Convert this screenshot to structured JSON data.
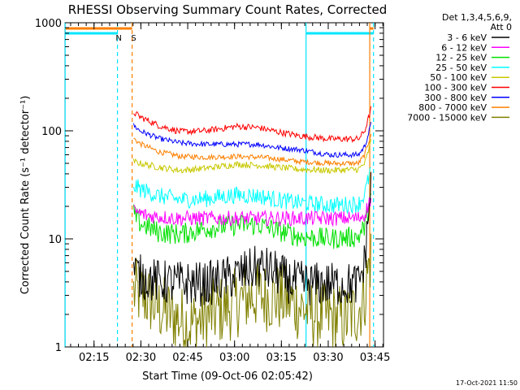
{
  "chart_data": {
    "type": "line",
    "title": "RHESSI Observing Summary Count Rates, Corrected",
    "xlabel": "Start Time (09-Oct-06 02:05:42)",
    "ylabel": "Corrected Count Rate (s⁻¹ detector⁻¹)",
    "y_scale": "log",
    "ylim": [
      1,
      1000
    ],
    "xlim_minutes_after_start": [
      0,
      102
    ],
    "x_ticks": [
      {
        "label": "02:15",
        "t": 9.3
      },
      {
        "label": "02:30",
        "t": 24.3
      },
      {
        "label": "02:45",
        "t": 39.3
      },
      {
        "label": "03:00",
        "t": 54.3
      },
      {
        "label": "03:15",
        "t": 69.3
      },
      {
        "label": "03:30",
        "t": 84.3
      },
      {
        "label": "03:45",
        "t": 99.3
      }
    ],
    "y_ticks": [
      {
        "label": "1",
        "v": 1
      },
      {
        "label": "10",
        "v": 10
      },
      {
        "label": "100",
        "v": 100
      },
      {
        "label": "1000",
        "v": 1000
      }
    ],
    "legend_header": [
      "Det 1,3,4,5,6,9,",
      "Att 0"
    ],
    "legend_position": "outside-right-top",
    "annotations": [
      {
        "label": "N",
        "t": 17.2,
        "color": "#00e5ff"
      },
      {
        "label": "S",
        "t": 22.0,
        "color": "#ff8000"
      }
    ],
    "footer_timestamp": "17-Oct-2021 11:50",
    "state_bars": [
      {
        "name": "night",
        "color": "#00e5ff",
        "segments": [
          [
            0,
            16.8
          ],
          [
            77.2,
            98.8
          ]
        ]
      },
      {
        "name": "saa",
        "color": "#ff8000",
        "segments": [
          [
            0,
            21.5
          ],
          [
            97.6,
            98.8
          ]
        ]
      }
    ],
    "vlines": [
      {
        "t": 0.05,
        "color": "#00e5ff",
        "style": "solid"
      },
      {
        "t": 16.8,
        "color": "#00e5ff",
        "style": "dashed"
      },
      {
        "t": 21.5,
        "color": "#ff8000",
        "style": "dashed"
      },
      {
        "t": 77.2,
        "color": "#00e5ff",
        "style": "solid"
      },
      {
        "t": 97.6,
        "color": "#ff8000",
        "style": "solid"
      },
      {
        "t": 98.8,
        "color": "#00e5ff",
        "style": "dashed"
      }
    ],
    "data_range_minutes": [
      22.0,
      98.0
    ],
    "series": [
      {
        "name": "3 - 6 keV",
        "color": "#000000",
        "noise": 0.35,
        "base": [
          [
            22,
            5.2
          ],
          [
            24,
            4.5
          ],
          [
            30,
            4.0
          ],
          [
            45,
            3.8
          ],
          [
            55,
            4.6
          ],
          [
            62,
            5.5
          ],
          [
            67,
            5.0
          ],
          [
            72,
            4.0
          ],
          [
            80,
            3.8
          ],
          [
            94,
            3.8
          ],
          [
            96,
            6.0
          ],
          [
            97,
            15
          ],
          [
            98,
            30
          ]
        ]
      },
      {
        "name": "6 - 12 keV",
        "color": "#ff00ff",
        "noise": 0.07,
        "base": [
          [
            22,
            18
          ],
          [
            26,
            16.5
          ],
          [
            35,
            15.5
          ],
          [
            55,
            15.5
          ],
          [
            75,
            15.5
          ],
          [
            94,
            15.5
          ],
          [
            96,
            17
          ],
          [
            97,
            20
          ],
          [
            98,
            24
          ]
        ]
      },
      {
        "name": "12 - 25 keV",
        "color": "#00e000",
        "noise": 0.1,
        "base": [
          [
            22,
            17
          ],
          [
            24,
            14
          ],
          [
            30,
            11.5
          ],
          [
            37,
            11
          ],
          [
            45,
            12.5
          ],
          [
            55,
            13.5
          ],
          [
            62,
            13.5
          ],
          [
            68,
            12
          ],
          [
            75,
            10.5
          ],
          [
            85,
            10
          ],
          [
            94,
            10.5
          ],
          [
            96,
            13
          ],
          [
            97,
            18
          ],
          [
            98,
            25
          ]
        ]
      },
      {
        "name": "25 - 50 keV",
        "color": "#00ffff",
        "noise": 0.08,
        "base": [
          [
            22,
            31
          ],
          [
            24,
            29
          ],
          [
            30,
            25
          ],
          [
            37,
            23
          ],
          [
            45,
            23.5
          ],
          [
            55,
            25.5
          ],
          [
            62,
            25
          ],
          [
            68,
            23
          ],
          [
            75,
            21.5
          ],
          [
            85,
            20.5
          ],
          [
            94,
            21
          ],
          [
            96,
            26
          ],
          [
            97,
            34
          ],
          [
            98,
            45
          ]
        ]
      },
      {
        "name": "50 - 100 keV",
        "color": "#c8c800",
        "noise": 0.03,
        "base": [
          [
            22,
            52
          ],
          [
            24,
            50
          ],
          [
            30,
            46
          ],
          [
            37,
            43
          ],
          [
            45,
            45
          ],
          [
            55,
            49
          ],
          [
            62,
            48
          ],
          [
            68,
            46
          ],
          [
            75,
            44
          ],
          [
            85,
            43
          ],
          [
            94,
            44
          ],
          [
            96,
            50
          ],
          [
            97,
            62
          ],
          [
            98,
            80
          ]
        ]
      },
      {
        "name": "100 - 300 keV",
        "color": "#ff0000",
        "noise": 0.03,
        "base": [
          [
            22,
            148
          ],
          [
            24,
            135
          ],
          [
            30,
            112
          ],
          [
            37,
            98
          ],
          [
            45,
            100
          ],
          [
            55,
            110
          ],
          [
            62,
            107
          ],
          [
            68,
            98
          ],
          [
            75,
            90
          ],
          [
            85,
            84
          ],
          [
            94,
            84
          ],
          [
            96,
            100
          ],
          [
            97,
            125
          ],
          [
            98,
            160
          ]
        ]
      },
      {
        "name": "300 - 800 keV",
        "color": "#0000ff",
        "noise": 0.025,
        "base": [
          [
            22,
            112
          ],
          [
            24,
            100
          ],
          [
            30,
            85
          ],
          [
            37,
            77
          ],
          [
            45,
            75
          ],
          [
            55,
            75
          ],
          [
            62,
            75
          ],
          [
            68,
            70
          ],
          [
            75,
            67
          ],
          [
            85,
            60
          ],
          [
            94,
            60
          ],
          [
            96,
            72
          ],
          [
            97,
            90
          ],
          [
            98,
            115
          ]
        ]
      },
      {
        "name": "800 - 7000 keV",
        "color": "#ff8000",
        "noise": 0.025,
        "base": [
          [
            22,
            85
          ],
          [
            24,
            76
          ],
          [
            30,
            64
          ],
          [
            37,
            58
          ],
          [
            45,
            57
          ],
          [
            55,
            58
          ],
          [
            62,
            57
          ],
          [
            68,
            55
          ],
          [
            75,
            52
          ],
          [
            85,
            50
          ],
          [
            94,
            50
          ],
          [
            96,
            60
          ],
          [
            97,
            75
          ],
          [
            98,
            95
          ]
        ]
      },
      {
        "name": "7000 - 15000 keV",
        "color": "#808000",
        "noise": 0.55,
        "base": [
          [
            22,
            3.2
          ],
          [
            25,
            3.0
          ],
          [
            30,
            2.3
          ],
          [
            40,
            1.6
          ],
          [
            50,
            2.2
          ],
          [
            60,
            3.0
          ],
          [
            70,
            2.8
          ],
          [
            80,
            2.0
          ],
          [
            90,
            1.8
          ],
          [
            94,
            2.2
          ],
          [
            96,
            3.0
          ],
          [
            97,
            5
          ],
          [
            98,
            7
          ]
        ]
      }
    ]
  }
}
